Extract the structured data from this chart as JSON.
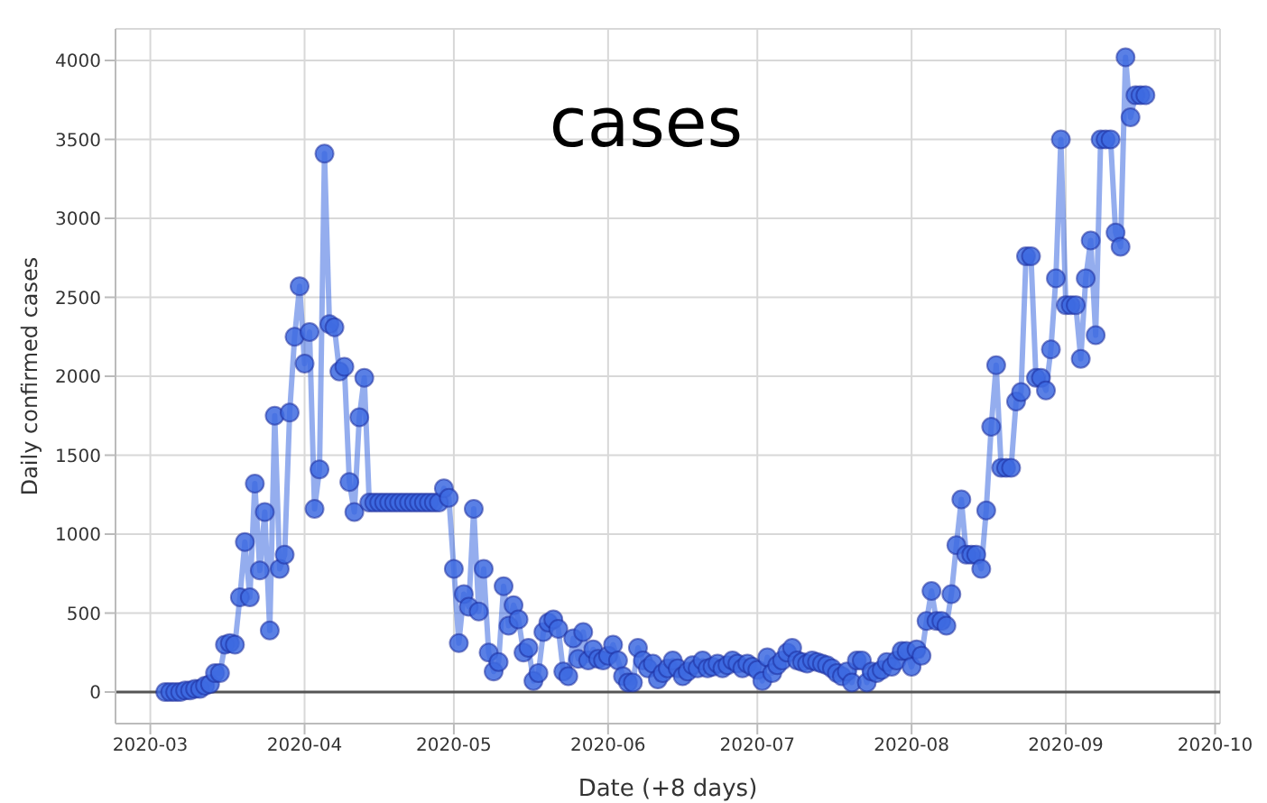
{
  "chart_data": {
    "type": "line",
    "title": "cases",
    "xlabel": "Date (+8 days)",
    "ylabel": "Daily confirmed cases",
    "x": [
      "2020-03-04",
      "2020-03-05",
      "2020-03-06",
      "2020-03-07",
      "2020-03-08",
      "2020-03-09",
      "2020-03-10",
      "2020-03-11",
      "2020-03-12",
      "2020-03-13",
      "2020-03-14",
      "2020-03-15",
      "2020-03-16",
      "2020-03-17",
      "2020-03-18",
      "2020-03-19",
      "2020-03-20",
      "2020-03-21",
      "2020-03-22",
      "2020-03-23",
      "2020-03-24",
      "2020-03-25",
      "2020-03-26",
      "2020-03-27",
      "2020-03-28",
      "2020-03-29",
      "2020-03-30",
      "2020-03-31",
      "2020-04-01",
      "2020-04-02",
      "2020-04-03",
      "2020-04-04",
      "2020-04-05",
      "2020-04-06",
      "2020-04-07",
      "2020-04-08",
      "2020-04-09",
      "2020-04-10",
      "2020-04-11",
      "2020-04-12",
      "2020-04-13",
      "2020-04-14",
      "2020-04-15",
      "2020-04-16",
      "2020-04-17",
      "2020-04-18",
      "2020-04-19",
      "2020-04-20",
      "2020-04-21",
      "2020-04-22",
      "2020-04-23",
      "2020-04-24",
      "2020-04-25",
      "2020-04-26",
      "2020-04-27",
      "2020-04-28",
      "2020-04-29",
      "2020-04-30",
      "2020-05-01",
      "2020-05-02",
      "2020-05-03",
      "2020-05-04",
      "2020-05-05",
      "2020-05-06",
      "2020-05-07",
      "2020-05-08",
      "2020-05-09",
      "2020-05-10",
      "2020-05-11",
      "2020-05-12",
      "2020-05-13",
      "2020-05-14",
      "2020-05-15",
      "2020-05-16",
      "2020-05-17",
      "2020-05-18",
      "2020-05-19",
      "2020-05-20",
      "2020-05-21",
      "2020-05-22",
      "2020-05-23",
      "2020-05-24",
      "2020-05-25",
      "2020-05-26",
      "2020-05-27",
      "2020-05-28",
      "2020-05-29",
      "2020-05-30",
      "2020-05-31",
      "2020-06-01",
      "2020-06-02",
      "2020-06-03",
      "2020-06-04",
      "2020-06-05",
      "2020-06-06",
      "2020-06-07",
      "2020-06-08",
      "2020-06-09",
      "2020-06-10",
      "2020-06-11",
      "2020-06-12",
      "2020-06-13",
      "2020-06-14",
      "2020-06-15",
      "2020-06-16",
      "2020-06-17",
      "2020-06-18",
      "2020-06-19",
      "2020-06-20",
      "2020-06-21",
      "2020-06-22",
      "2020-06-23",
      "2020-06-24",
      "2020-06-25",
      "2020-06-26",
      "2020-06-27",
      "2020-06-28",
      "2020-06-29",
      "2020-06-30",
      "2020-07-01",
      "2020-07-02",
      "2020-07-03",
      "2020-07-04",
      "2020-07-05",
      "2020-07-06",
      "2020-07-07",
      "2020-07-08",
      "2020-07-09",
      "2020-07-10",
      "2020-07-11",
      "2020-07-12",
      "2020-07-13",
      "2020-07-14",
      "2020-07-15",
      "2020-07-16",
      "2020-07-17",
      "2020-07-18",
      "2020-07-19",
      "2020-07-20",
      "2020-07-21",
      "2020-07-22",
      "2020-07-23",
      "2020-07-24",
      "2020-07-25",
      "2020-07-26",
      "2020-07-27",
      "2020-07-28",
      "2020-07-29",
      "2020-07-30",
      "2020-07-31",
      "2020-08-01",
      "2020-08-02",
      "2020-08-03",
      "2020-08-04",
      "2020-08-05",
      "2020-08-06",
      "2020-08-07",
      "2020-08-08",
      "2020-08-09",
      "2020-08-10",
      "2020-08-11",
      "2020-08-12",
      "2020-08-13",
      "2020-08-14",
      "2020-08-15",
      "2020-08-16",
      "2020-08-17",
      "2020-08-18",
      "2020-08-19",
      "2020-08-20",
      "2020-08-21",
      "2020-08-22",
      "2020-08-23",
      "2020-08-24",
      "2020-08-25",
      "2020-08-26",
      "2020-08-27",
      "2020-08-28",
      "2020-08-29",
      "2020-08-30",
      "2020-08-31",
      "2020-09-01",
      "2020-09-02",
      "2020-09-03",
      "2020-09-04",
      "2020-09-05",
      "2020-09-06",
      "2020-09-07",
      "2020-09-08",
      "2020-09-09",
      "2020-09-10",
      "2020-09-11",
      "2020-09-12",
      "2020-09-13",
      "2020-09-14",
      "2020-09-15",
      "2020-09-16",
      "2020-09-17"
    ],
    "series": [
      {
        "color": "#3d6ae0",
        "values": [
          0,
          0,
          0,
          0,
          10,
          10,
          20,
          20,
          40,
          50,
          120,
          120,
          300,
          310,
          300,
          600,
          950,
          600,
          1320,
          770,
          1140,
          390,
          1750,
          780,
          870,
          1770,
          2250,
          2570,
          2080,
          2280,
          1160,
          1410,
          3410,
          2330,
          2310,
          2030,
          2060,
          1330,
          1140,
          1740,
          1990,
          1200,
          1200,
          1200,
          1200,
          1200,
          1200,
          1200,
          1200,
          1200,
          1200,
          1200,
          1200,
          1200,
          1200,
          1200,
          1290,
          1230,
          780,
          310,
          620,
          540,
          1160,
          510,
          780,
          250,
          130,
          190,
          670,
          420,
          550,
          460,
          250,
          280,
          70,
          120,
          380,
          440,
          460,
          400,
          130,
          100,
          340,
          210,
          380,
          200,
          270,
          210,
          200,
          230,
          300,
          200,
          100,
          60,
          60,
          280,
          200,
          150,
          180,
          80,
          120,
          150,
          200,
          150,
          100,
          130,
          170,
          150,
          200,
          150,
          160,
          180,
          150,
          170,
          200,
          180,
          150,
          180,
          160,
          140,
          70,
          220,
          120,
          170,
          200,
          250,
          280,
          200,
          190,
          180,
          200,
          190,
          180,
          170,
          150,
          120,
          100,
          130,
          60,
          200,
          200,
          60,
          130,
          120,
          140,
          190,
          160,
          200,
          260,
          260,
          160,
          270,
          230,
          450,
          640,
          450,
          450,
          420,
          620,
          930,
          1220,
          870,
          870,
          870,
          780,
          1150,
          1680,
          2070,
          1420,
          1420,
          1420,
          1840,
          1900,
          2760,
          2760,
          1990,
          1990,
          1910,
          2170,
          2620,
          3500,
          2450,
          2450,
          2450,
          2110,
          2620,
          2860,
          2260,
          3500,
          3500,
          3500,
          2910,
          2820,
          4020,
          3640,
          3780,
          3780,
          3780
        ]
      }
    ],
    "xlim": [
      "2020-02-23",
      "2020-10-02"
    ],
    "xticks": [
      "2020-03",
      "2020-04",
      "2020-05",
      "2020-06",
      "2020-07",
      "2020-08",
      "2020-09",
      "2020-10"
    ],
    "ylim": [
      -200,
      4200
    ],
    "yticks": [
      0,
      500,
      1000,
      1500,
      2000,
      2500,
      3000,
      3500,
      4000
    ],
    "ref_lines": [
      {
        "axis": "y",
        "value": 0,
        "color": "#555555"
      }
    ],
    "grid": true,
    "marker": "circle",
    "line_style": "solid"
  }
}
